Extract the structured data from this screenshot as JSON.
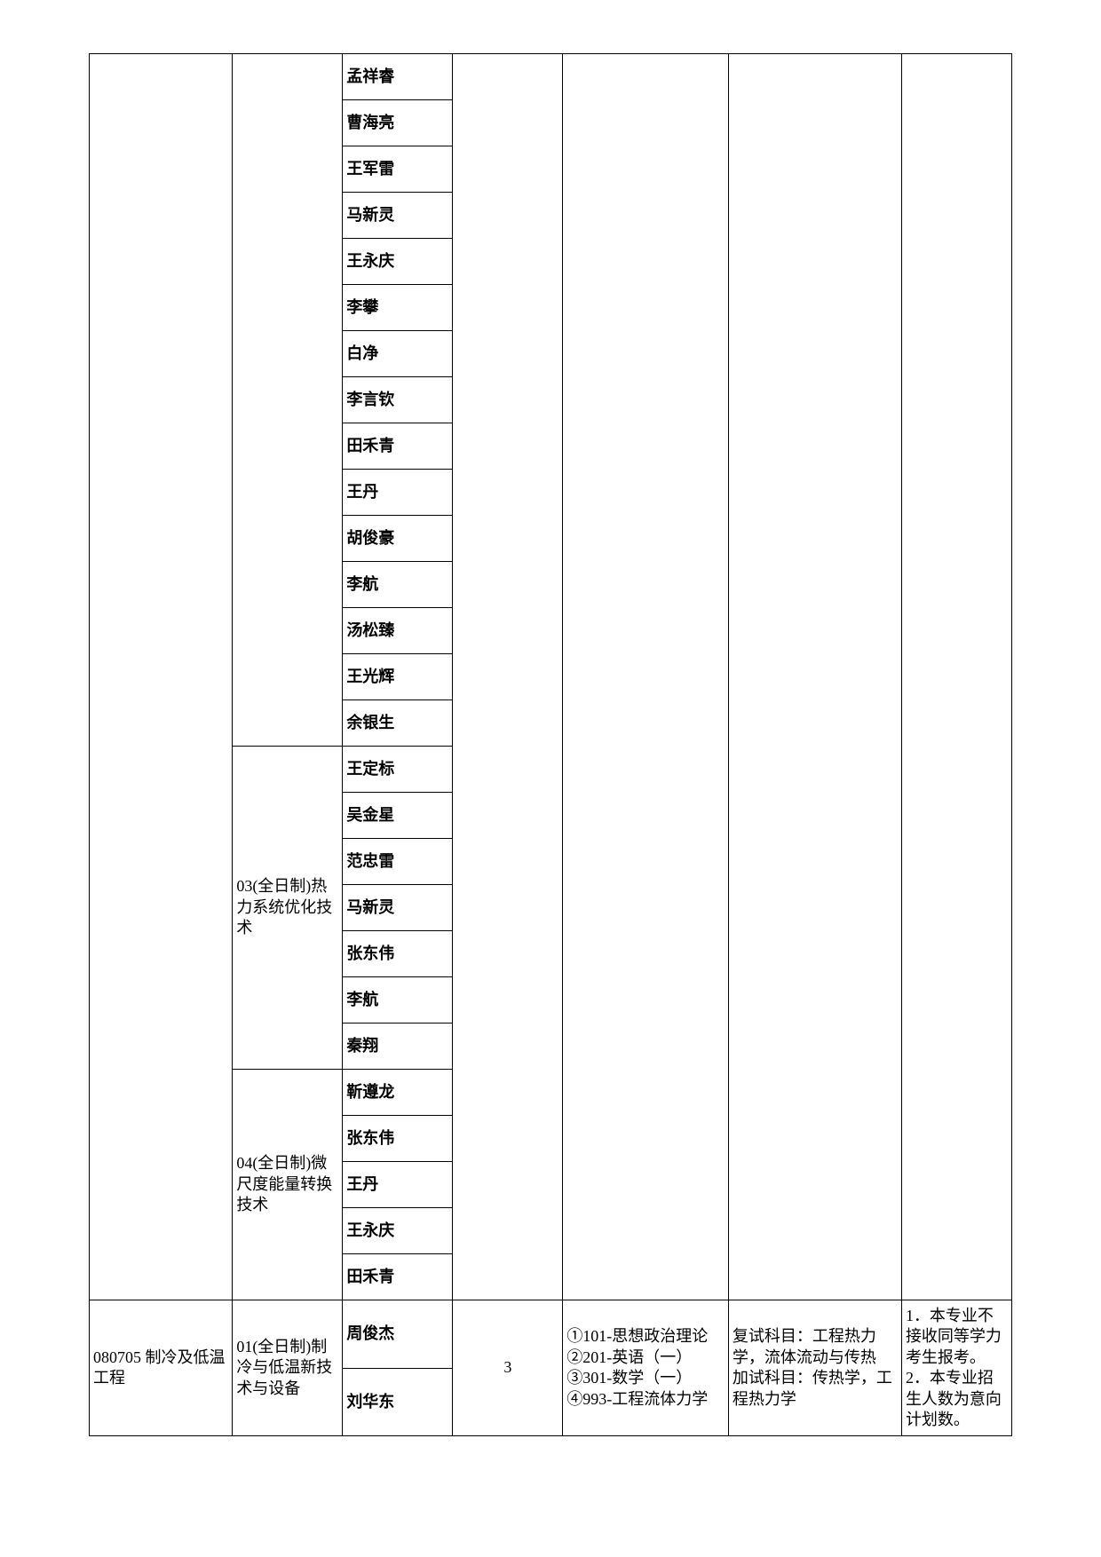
{
  "colors": {
    "border": "#000000",
    "bg": "#ffffff",
    "text": "#000000"
  },
  "fonts": {
    "cell_fontsize": 18,
    "cell_fontweight": "bold"
  },
  "sections": [
    {
      "col1": "",
      "groups": [
        {
          "col2": "",
          "names": [
            "孟祥睿",
            "曹海亮",
            "王军雷",
            "马新灵",
            "王永庆",
            "李攀",
            "白净",
            "李言钦",
            "田禾青",
            "王丹",
            "胡俊豪",
            "李航",
            "汤松臻",
            "王光辉",
            "余银生"
          ]
        },
        {
          "col2": "03(全日制)热力系统优化技术",
          "names": [
            "王定标",
            "吴金星",
            "范忠雷",
            "马新灵",
            "张东伟",
            "李航",
            "秦翔"
          ]
        },
        {
          "col2": "04(全日制)微尺度能量转换技术",
          "names": [
            "靳遵龙",
            "张东伟",
            "王丹",
            "王永庆",
            "田禾青"
          ]
        }
      ],
      "col4": "",
      "col5": "",
      "col6": "",
      "col7": ""
    },
    {
      "col1": "080705 制冷及低温工程",
      "groups": [
        {
          "col2": "01(全日制)制冷与低温新技术与设备",
          "names": [
            "周俊杰",
            "刘华东"
          ]
        }
      ],
      "col4": "3",
      "col5": "①101-思想政治理论\n②201-英语（一）\n③301-数学（一）\n④993-工程流体力学",
      "col6": "复试科目：工程热力学，流体流动与传热\n加试科目：传热学，工程热力学",
      "col7": "1．本专业不接收同等学力考生报考。\n2．本专业招生人数为意向计划数。"
    }
  ]
}
